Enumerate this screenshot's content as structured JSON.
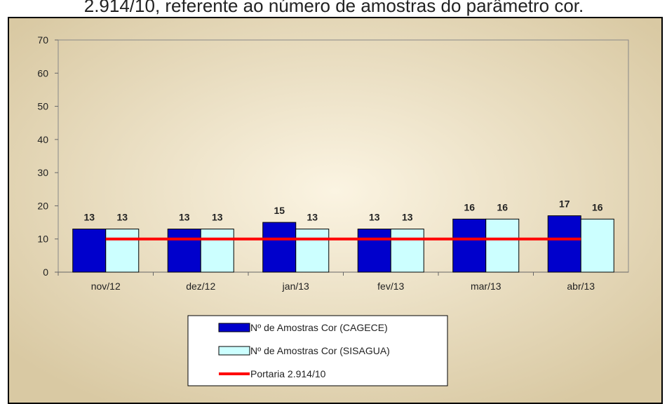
{
  "chart_data": {
    "type": "bar",
    "title": "2.914/10, referente ao número de amostras do parâmetro cor.",
    "categories": [
      "nov/12",
      "dez/12",
      "jan/13",
      "fev/13",
      "mar/13",
      "abr/13"
    ],
    "series": [
      {
        "name": "Nº de Amostras Cor (CAGECE)",
        "type": "bar",
        "color": "#0000cc",
        "label_color": "#1010e0",
        "values": [
          13,
          13,
          15,
          13,
          16,
          17
        ]
      },
      {
        "name": "Nº de Amostras Cor (SISAGUA)",
        "type": "bar",
        "color": "#ccffff",
        "label_color": "#111111",
        "values": [
          13,
          13,
          13,
          13,
          16,
          16
        ]
      },
      {
        "name": "Portaria 2.914/10",
        "type": "line",
        "color": "#ff0000",
        "values": [
          10,
          10,
          10,
          10,
          10,
          10
        ]
      }
    ],
    "ylim": [
      0,
      70
    ],
    "yticks": [
      0,
      10,
      20,
      30,
      40,
      50,
      60,
      70
    ]
  }
}
